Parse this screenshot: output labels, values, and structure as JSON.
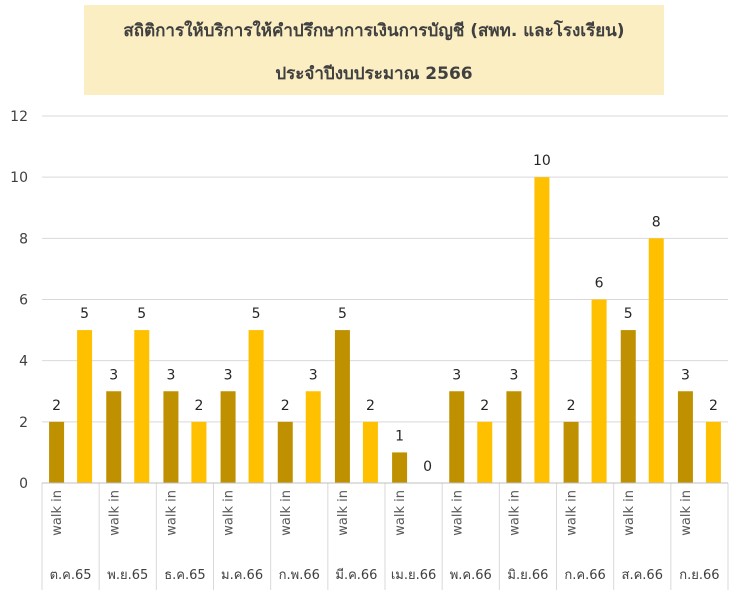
{
  "chart_data": {
    "type": "bar",
    "title": "สถิติการให้บริการให้คำปรึกษาการเงินการบัญชี (สพท. และโรงเรียน)",
    "subtitle": "ประจำปีงบประมาณ 2566",
    "ylim": [
      0,
      12
    ],
    "yticks": [
      0,
      2,
      4,
      6,
      8,
      10,
      12
    ],
    "grid": true,
    "categories": [
      "ต.ค.65",
      "พ.ย.65",
      "ธ.ค.65",
      "ม.ค.66",
      "ก.พ.66",
      "มี.ค.66",
      "เม.ย.66",
      "พ.ค.66",
      "มิ.ย.66",
      "ก.ค.66",
      "ส.ค.66",
      "ก.ย.66"
    ],
    "subcategories": [
      "walk in",
      "walk in",
      "walk in",
      "walk in",
      "walk in",
      "walk in",
      "walk in",
      "walk in",
      "walk in",
      "walk in",
      "walk in",
      "walk in"
    ],
    "series": [
      {
        "color": "#bf9000",
        "values": [
          2,
          3,
          3,
          3,
          2,
          5,
          1,
          3,
          3,
          2,
          5,
          3
        ]
      },
      {
        "color": "#ffc000",
        "values": [
          5,
          5,
          2,
          5,
          3,
          2,
          0,
          2,
          10,
          6,
          8,
          2
        ]
      }
    ]
  }
}
